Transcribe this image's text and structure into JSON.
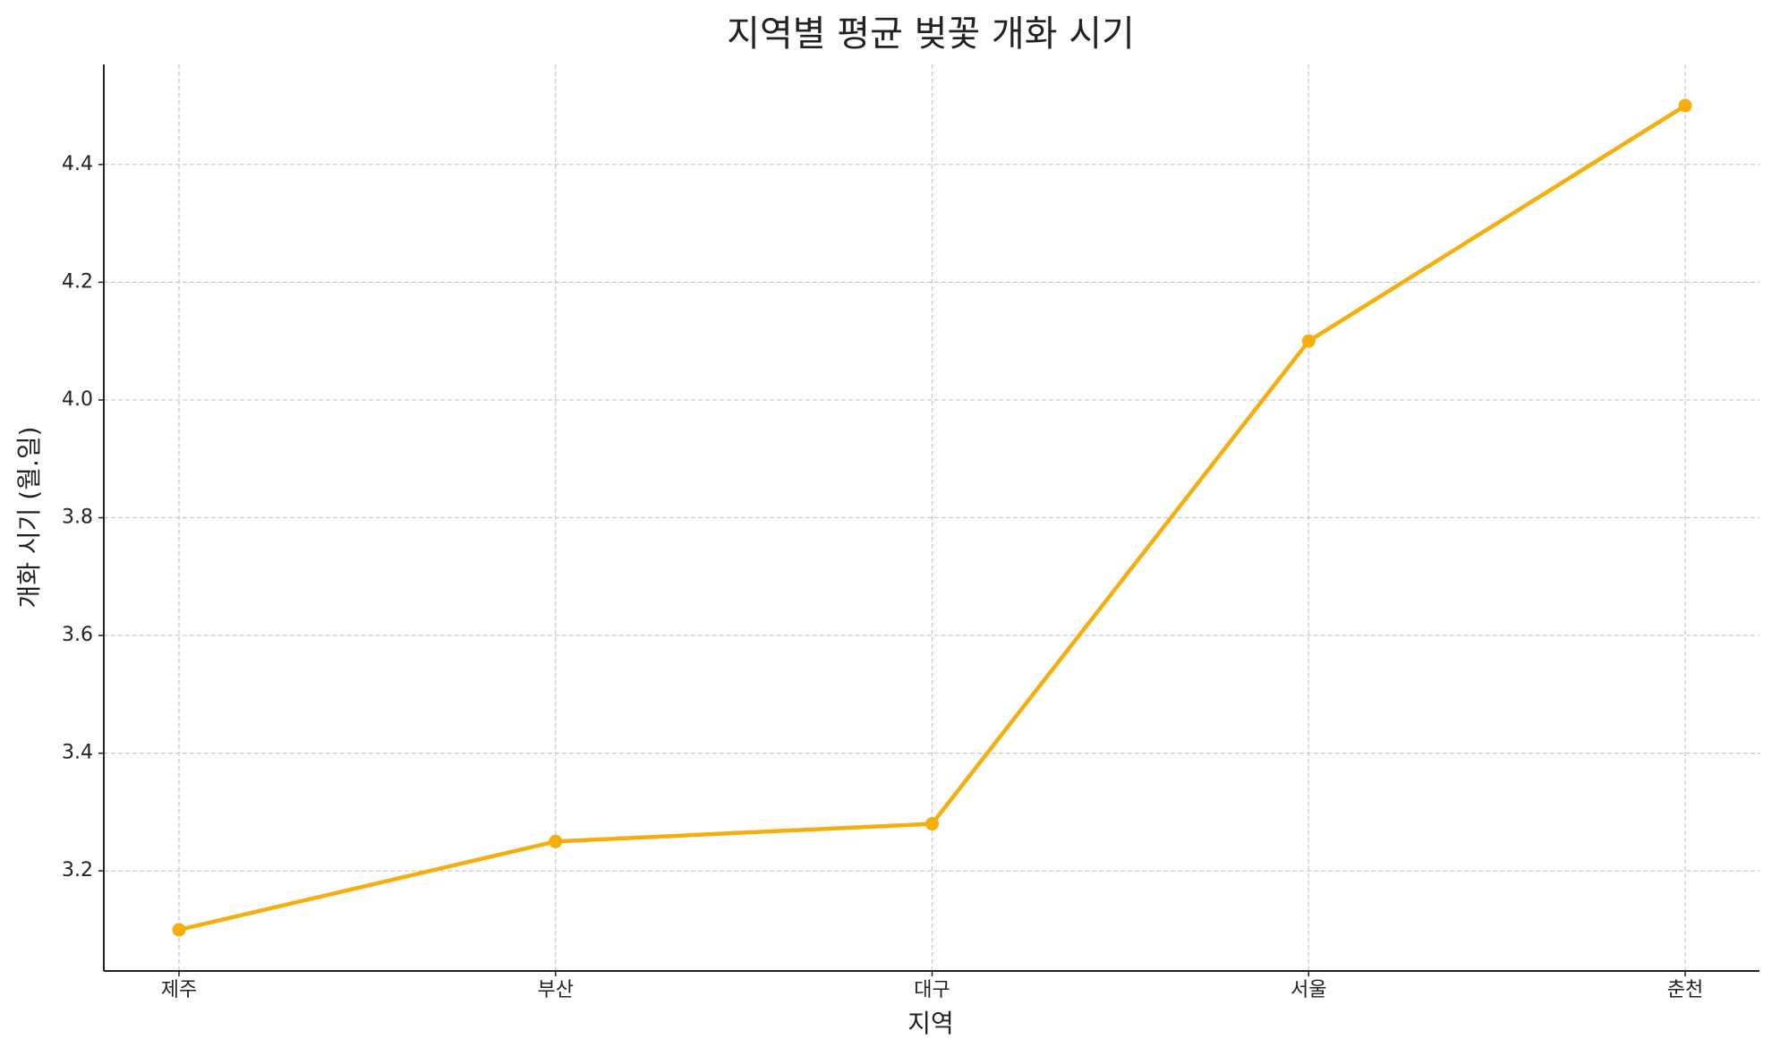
{
  "chart_data": {
    "type": "line",
    "title": "지역별 평균 벚꽃 개화 시기",
    "x_label": "지역",
    "y_label": "개화 시기 (월.일)",
    "categories": [
      "제주",
      "부산",
      "대구",
      "서울",
      "춘천"
    ],
    "series": [
      {
        "name": "개화 시기",
        "color": "#f5ae0b",
        "values": [
          3.1,
          3.25,
          3.28,
          4.1,
          4.5
        ]
      }
    ],
    "ylim": [
      3.03,
      4.57
    ],
    "yticks": [
      3.2,
      3.4,
      3.6,
      3.8,
      {
        "value": 4,
        "label": "4.0"
      },
      4.2,
      4.4
    ],
    "grid": true
  }
}
